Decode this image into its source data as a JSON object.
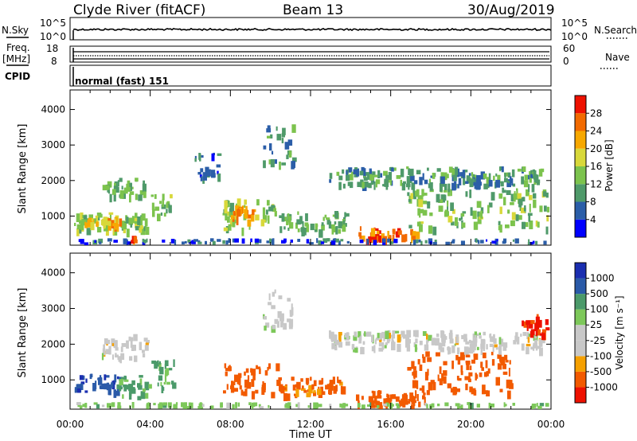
{
  "header": {
    "station": "Clyde River (fitACF)",
    "beam": "Beam 13",
    "date": "30/Aug/2019"
  },
  "strip": {
    "nsky_label": "N.Sky",
    "nsky_ticks": [
      "10^5",
      "10^0"
    ],
    "nsearch_label": "N.Search",
    "nsearch_ticks": [
      "10^5",
      "10^0"
    ],
    "freq_label": "Freq.",
    "freq_unit": "[MHz]",
    "freq_ticks": [
      "18",
      "8"
    ],
    "nave_label": "Nave",
    "nave_ticks": [
      "60",
      "0"
    ],
    "cpid_label": "CPID",
    "cpid_value": "normal (fast) 151"
  },
  "colors": {
    "power_scale": [
      "#0000ff",
      "#2b5ea8",
      "#4f9a6a",
      "#7cc34d",
      "#d8d83a",
      "#f7a800",
      "#f26a00",
      "#ee1100"
    ],
    "velocity_scale": [
      "#ee1100",
      "#f25a00",
      "#f5a000",
      "#c8c8c8",
      "#c8c8c8",
      "#7dc85a",
      "#4b9a6a",
      "#2a5aa8",
      "#1a2eb0"
    ]
  },
  "chart_data": [
    {
      "type": "heatmap",
      "title": "",
      "xlabel": "Time UT",
      "ylabel": "Slant Range [km]",
      "x_ticks": [
        "00:00",
        "04:00",
        "08:00",
        "12:00",
        "16:00",
        "20:00",
        "00:00"
      ],
      "y_ticks": [
        1000,
        2000,
        3000,
        4000
      ],
      "ylim": [
        180,
        4550
      ],
      "xlim_hours": [
        0,
        24
      ],
      "colorbar": {
        "label": "Power [dB]",
        "ticks": [
          4,
          8,
          12,
          16,
          20,
          24,
          28
        ]
      },
      "patches": [
        {
          "t0": 0.1,
          "t1": 3.9,
          "r0": 640,
          "r1": 1110,
          "value": 14
        },
        {
          "t0": 0.7,
          "t1": 2.5,
          "r0": 760,
          "r1": 1000,
          "value": 22
        },
        {
          "t0": 1.6,
          "t1": 3.7,
          "r0": 1600,
          "r1": 2100,
          "value": 12
        },
        {
          "t0": 4.0,
          "t1": 5.0,
          "r0": 1050,
          "r1": 1650,
          "value": 13
        },
        {
          "t0": 7.6,
          "t1": 10.3,
          "r0": 650,
          "r1": 1500,
          "value": 15
        },
        {
          "t0": 8.0,
          "t1": 9.2,
          "r0": 900,
          "r1": 1300,
          "value": 24
        },
        {
          "t0": 10.4,
          "t1": 13.8,
          "r0": 620,
          "r1": 1150,
          "value": 12
        },
        {
          "t0": 14.3,
          "t1": 17.6,
          "r0": 190,
          "r1": 720,
          "value": 26
        },
        {
          "t0": 16.8,
          "t1": 23.9,
          "r0": 700,
          "r1": 1800,
          "value": 13
        },
        {
          "t0": 12.9,
          "t1": 23.5,
          "r0": 1900,
          "r1": 2400,
          "value": 10
        },
        {
          "t0": 0.3,
          "t1": 24.0,
          "r0": 190,
          "r1": 380,
          "value": 6
        },
        {
          "t0": 2.7,
          "t1": 3.4,
          "r0": 190,
          "r1": 450,
          "value": 27
        },
        {
          "t0": 9.6,
          "t1": 11.1,
          "r0": 2500,
          "r1": 3600,
          "value": 9
        },
        {
          "t0": 6.2,
          "t1": 7.4,
          "r0": 2100,
          "r1": 2800,
          "value": 7
        }
      ]
    },
    {
      "type": "heatmap",
      "title": "",
      "xlabel": "Time UT",
      "ylabel": "Slant Range [km]",
      "x_ticks": [
        "00:00",
        "04:00",
        "08:00",
        "12:00",
        "16:00",
        "20:00",
        "00:00"
      ],
      "y_ticks": [
        1000,
        2000,
        3000,
        4000
      ],
      "ylim": [
        180,
        4550
      ],
      "xlim_hours": [
        0,
        24
      ],
      "colorbar": {
        "label": "Velocity [m s⁻¹]",
        "ticks": [
          1000,
          500,
          100,
          25,
          -25,
          -100,
          -500,
          -1000
        ]
      },
      "patches": [
        {
          "t0": 0.2,
          "t1": 2.5,
          "r0": 680,
          "r1": 1180,
          "value": 800
        },
        {
          "t0": 2.3,
          "t1": 3.8,
          "r0": 500,
          "r1": 1150,
          "value": 150
        },
        {
          "t0": 1.5,
          "t1": 3.8,
          "r0": 1600,
          "r1": 2300,
          "value": 0
        },
        {
          "t0": 3.9,
          "t1": 5.2,
          "r0": 800,
          "r1": 1600,
          "value": 120
        },
        {
          "t0": 7.6,
          "t1": 10.4,
          "r0": 650,
          "r1": 1500,
          "value": -300
        },
        {
          "t0": 10.4,
          "t1": 13.6,
          "r0": 600,
          "r1": 1100,
          "value": -150
        },
        {
          "t0": 14.2,
          "t1": 17.8,
          "r0": 190,
          "r1": 720,
          "value": -300
        },
        {
          "t0": 16.8,
          "t1": 22.0,
          "r0": 700,
          "r1": 1800,
          "value": -200
        },
        {
          "t0": 12.9,
          "t1": 23.5,
          "r0": 1900,
          "r1": 2400,
          "value": 0
        },
        {
          "t0": 0.3,
          "t1": 24.0,
          "r0": 190,
          "r1": 380,
          "value": 60
        },
        {
          "t0": 22.5,
          "t1": 23.9,
          "r0": 2300,
          "r1": 2900,
          "value": -600
        },
        {
          "t0": 9.6,
          "t1": 11.1,
          "r0": 2500,
          "r1": 3600,
          "value": 0
        }
      ]
    }
  ]
}
